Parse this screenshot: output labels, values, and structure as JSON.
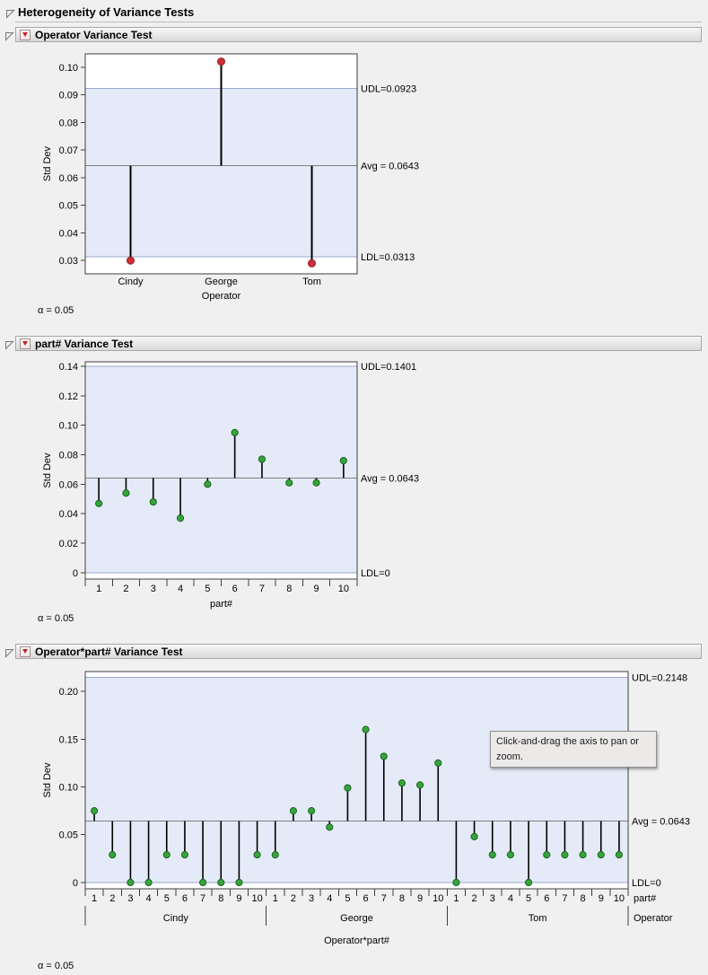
{
  "page": {
    "title": "Heterogeneity of Variance Tests"
  },
  "panels": [
    {
      "title": "Operator Variance Test",
      "alpha": "α = 0.05"
    },
    {
      "title": "part# Variance Test",
      "alpha": "α = 0.05"
    },
    {
      "title": "Operator*part# Variance Test",
      "alpha": "α = 0.05"
    }
  ],
  "tooltip": {
    "text": "Click-and-drag the axis to pan or zoom."
  },
  "colors": {
    "band": "#e5eaf8",
    "limit_line": "#9aa8cf",
    "avg_line": "#7f7f7f",
    "axis": "#3f3f3f",
    "needle": "#000000",
    "red_point": "#cf2f36",
    "red_point_stroke": "#8e1f24",
    "green_point": "#35a53a",
    "green_point_stroke": "#1e6322"
  },
  "chart_data": [
    {
      "type": "needle",
      "title": "Operator Variance Test",
      "ylabel": "Std Dev",
      "xlabel": "Operator",
      "categories": [
        "Cindy",
        "George",
        "Tom"
      ],
      "values": [
        0.03,
        0.102,
        0.029
      ],
      "point_color": "#cf2f36",
      "point_stroke": "#8e1f24",
      "yticks": [
        "0.03",
        "0.04",
        "0.05",
        "0.06",
        "0.07",
        "0.08",
        "0.09",
        "0.10"
      ],
      "ylim": [
        0.0252,
        0.1048
      ],
      "avg": 0.0643,
      "udl": 0.0923,
      "ldl": 0.0313,
      "labels": {
        "udl": "UDL=0.0923",
        "avg": "Avg = 0.0643",
        "ldl": "LDL=0.0313"
      },
      "legend_position": "right",
      "grid": false
    },
    {
      "type": "needle",
      "title": "part# Variance Test",
      "ylabel": "Std Dev",
      "xlabel": "part#",
      "categories": [
        "1",
        "2",
        "3",
        "4",
        "5",
        "6",
        "7",
        "8",
        "9",
        "10"
      ],
      "values": [
        0.047,
        0.054,
        0.048,
        0.037,
        0.06,
        0.095,
        0.077,
        0.061,
        0.061,
        0.076
      ],
      "point_color": "#35a53a",
      "point_stroke": "#1e6322",
      "yticks": [
        "0",
        "0.02",
        "0.04",
        "0.06",
        "0.08",
        "0.10",
        "0.12",
        "0.14"
      ],
      "ylim": [
        -0.0043,
        0.143
      ],
      "avg": 0.0643,
      "udl": 0.1401,
      "ldl": 0,
      "labels": {
        "udl": "UDL=0.1401",
        "avg": "Avg = 0.0643",
        "ldl": "LDL=0"
      },
      "legend_position": "right",
      "grid": false
    },
    {
      "type": "needle",
      "title": "Operator*part# Variance Test",
      "ylabel": "Std Dev",
      "xlabel": "Operator*part#",
      "x_sub_label": "part#",
      "group_label": "Operator",
      "part_labels": [
        "1",
        "2",
        "3",
        "4",
        "5",
        "6",
        "7",
        "8",
        "9",
        "10"
      ],
      "groups": [
        {
          "name": "Cindy",
          "values": [
            0.075,
            0.029,
            0,
            0,
            0.029,
            0.029,
            0,
            0,
            0,
            0.029
          ]
        },
        {
          "name": "George",
          "values": [
            0.029,
            0.075,
            0.075,
            0.058,
            0.099,
            0.16,
            0.132,
            0.104,
            0.102,
            0.125
          ]
        },
        {
          "name": "Tom",
          "values": [
            0,
            0.048,
            0.029,
            0.029,
            0,
            0.029,
            0.029,
            0.029,
            0.029,
            0.029
          ]
        }
      ],
      "point_color": "#35a53a",
      "point_stroke": "#1e6322",
      "yticks": [
        "0",
        "0.05",
        "0.10",
        "0.15",
        "0.20"
      ],
      "ylim": [
        -0.0066,
        0.2207
      ],
      "avg": 0.0643,
      "udl": 0.2148,
      "ldl": 0,
      "labels": {
        "udl": "UDL=0.2148",
        "avg": "Avg = 0.0643",
        "ldl": "LDL=0"
      },
      "legend_position": "right",
      "grid": false
    }
  ]
}
